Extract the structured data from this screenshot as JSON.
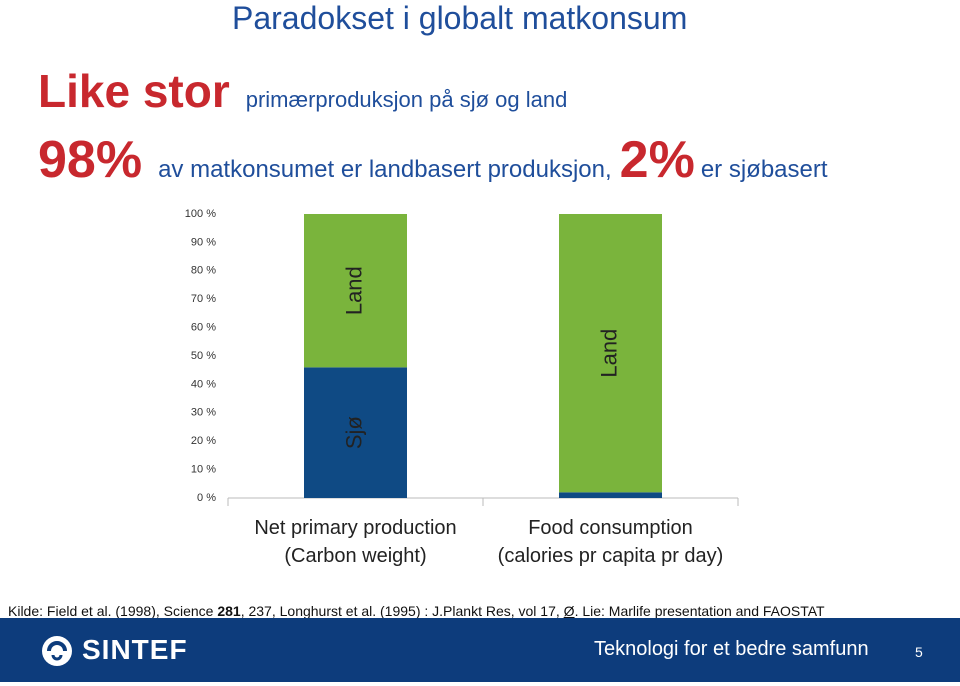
{
  "title": "Paradokset i globalt matkonsum",
  "headline": {
    "emphasis": "Like stor",
    "text": "primærproduksjon på sjø og land"
  },
  "subline": {
    "share_land": "98%",
    "text_land": "av matkonsumet er landbasert produksjon,",
    "share_sea": "2%",
    "text_sea": "er sjøbasert"
  },
  "chart_data": {
    "type": "stacked_bar",
    "categories": [
      "Net primary production\n(Carbon weight)",
      "Food consumption\n(calories pr capita pr day)"
    ],
    "series": [
      {
        "name": "Sjø",
        "color": "#0f4a84",
        "values": [
          46,
          2
        ]
      },
      {
        "name": "Land",
        "color": "#7ab43c",
        "values": [
          54,
          98
        ]
      }
    ],
    "ylim": [
      0,
      100
    ],
    "yticks": [
      {
        "value": 0,
        "label": "0 %"
      },
      {
        "value": 10,
        "label": "10 %"
      },
      {
        "value": 20,
        "label": "20 %"
      },
      {
        "value": 30,
        "label": "30 %"
      },
      {
        "value": 40,
        "label": "40 %"
      },
      {
        "value": 50,
        "label": "50 %"
      },
      {
        "value": 60,
        "label": "60 %"
      },
      {
        "value": 70,
        "label": "70 %"
      },
      {
        "value": 80,
        "label": "80 %"
      },
      {
        "value": 90,
        "label": "90 %"
      },
      {
        "value": 100,
        "label": "100 %"
      }
    ],
    "grid": false
  },
  "source": [
    "Kilde: Field et al. (1998), Science ",
    "281",
    ", 237, Longhurst et al. (1995)  : J.Plankt Res, vol 17, ",
    "Ø",
    ". Lie: Marlife presentation and FAOSTAT"
  ],
  "footer": {
    "logo": "SINTEF",
    "slogan": "Teknologi for et bedre samfunn",
    "page": "5"
  }
}
